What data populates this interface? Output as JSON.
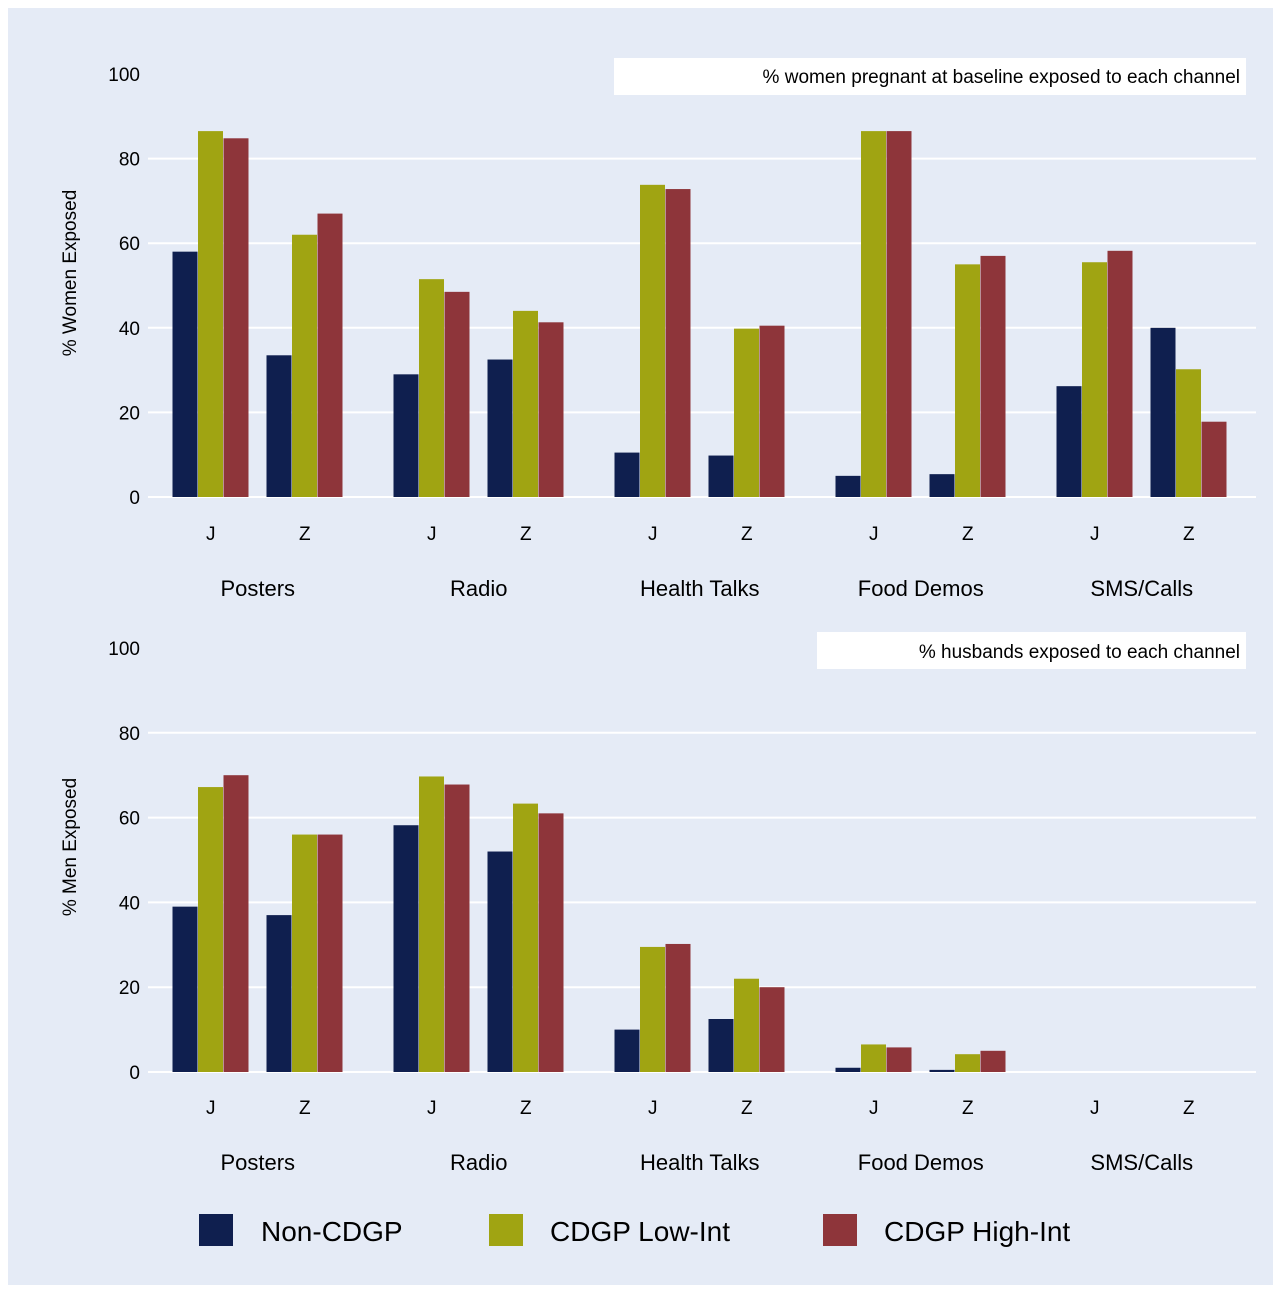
{
  "colors": {
    "background": "#e5ebf6",
    "grid": "#ffffff",
    "series": [
      "#0f1f4f",
      "#a0a412",
      "#8e353a"
    ]
  },
  "chart_data": [
    {
      "type": "bar",
      "title": "",
      "annotation": "% women pregnant at baseline exposed to each channel",
      "ylabel": "% Women Exposed",
      "xlabel": "",
      "ylim": [
        0,
        100
      ],
      "yticks": [
        0,
        20,
        40,
        60,
        80,
        100
      ],
      "grid": true,
      "groups": [
        "Posters",
        "Radio",
        "Health Talks",
        "Food Demos",
        "SMS/Calls"
      ],
      "subcategories": [
        "J",
        "Z"
      ],
      "series": [
        {
          "name": "Non-CDGP",
          "values": [
            58,
            33.5,
            29,
            32.5,
            10.5,
            9.8,
            5,
            5.4,
            26.2,
            40
          ]
        },
        {
          "name": "CDGP Low-Int",
          "values": [
            86.5,
            62,
            51.5,
            44,
            73.8,
            39.8,
            86.5,
            55,
            55.5,
            30.2
          ]
        },
        {
          "name": "CDGP High-Int",
          "values": [
            84.8,
            67,
            48.5,
            41.3,
            72.8,
            40.5,
            86.5,
            57,
            58.2,
            17.8
          ]
        }
      ]
    },
    {
      "type": "bar",
      "title": "",
      "annotation": "% husbands exposed to each channel",
      "ylabel": "% Men Exposed",
      "xlabel": "",
      "ylim": [
        0,
        100
      ],
      "yticks": [
        0,
        20,
        40,
        60,
        80,
        100
      ],
      "grid": true,
      "groups": [
        "Posters",
        "Radio",
        "Health Talks",
        "Food Demos",
        "SMS/Calls"
      ],
      "subcategories": [
        "J",
        "Z"
      ],
      "series": [
        {
          "name": "Non-CDGP",
          "values": [
            39,
            37,
            58.2,
            52,
            10,
            12.5,
            1,
            0.5,
            0,
            0
          ]
        },
        {
          "name": "CDGP Low-Int",
          "values": [
            67.2,
            56,
            69.7,
            63.3,
            29.5,
            22,
            6.5,
            4.2,
            0,
            0
          ]
        },
        {
          "name": "CDGP High-Int",
          "values": [
            70,
            56,
            67.8,
            61,
            30.2,
            20,
            5.8,
            5,
            0,
            0
          ]
        }
      ]
    }
  ],
  "legend": {
    "position": "bottom",
    "items": [
      "Non-CDGP",
      "CDGP Low-Int",
      "CDGP High-Int"
    ]
  }
}
